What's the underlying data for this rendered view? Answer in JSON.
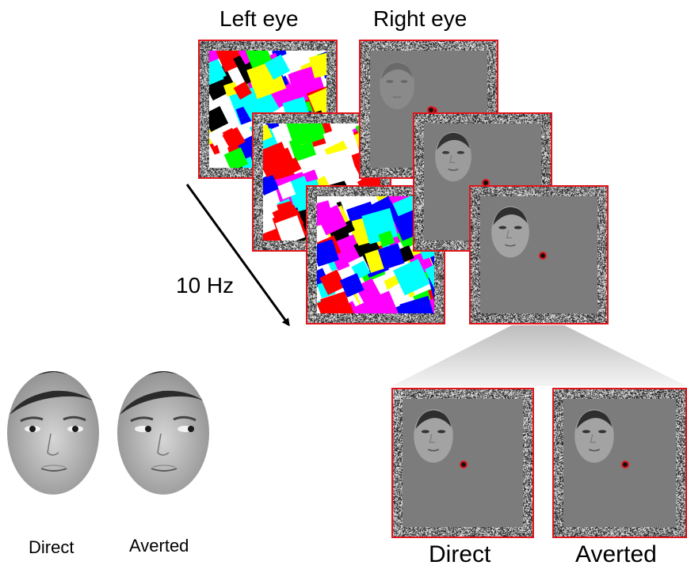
{
  "labels": {
    "left_eye": "Left eye",
    "right_eye": "Right eye",
    "frequency": "10 Hz",
    "face_direct": "Direct",
    "face_averted": "Averted",
    "frame_direct": "Direct",
    "frame_averted": "Averted"
  },
  "colors": {
    "frame_border": "#e2151c",
    "gray_field": "#7c7c7c",
    "mondrian_palette": [
      "#ff0000",
      "#00ff00",
      "#0000ff",
      "#ffff00",
      "#00ffff",
      "#ff00ff",
      "#000000",
      "#ffffff"
    ]
  }
}
